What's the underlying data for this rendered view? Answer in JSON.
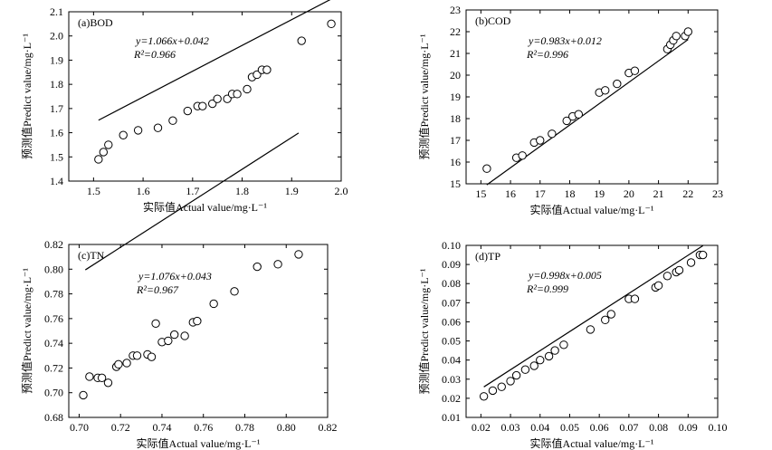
{
  "chart_data": [
    {
      "type": "scatter",
      "title": "(a)BOD",
      "xlabel": "实际值Actual value/mg·L⁻¹",
      "ylabel": "预测值Predict value/mg·L⁻¹",
      "xlim": [
        1.45,
        2.0
      ],
      "ylim": [
        1.4,
        2.1
      ],
      "xticks": [
        "1.5",
        "1.6",
        "1.7",
        "1.8",
        "1.9",
        "2.0"
      ],
      "yticks": [
        "1.4",
        "1.5",
        "1.6",
        "1.7",
        "1.8",
        "1.9",
        "2.0",
        "2.1"
      ],
      "equation": "y=1.066x+0.042",
      "r2": "R²=0.966",
      "fit": {
        "slope": 1.066,
        "intercept": 0.042,
        "xrange": [
          1.51,
          1.98
        ]
      },
      "x": [
        1.51,
        1.52,
        1.53,
        1.56,
        1.59,
        1.63,
        1.66,
        1.69,
        1.71,
        1.72,
        1.74,
        1.75,
        1.77,
        1.78,
        1.79,
        1.81,
        1.82,
        1.83,
        1.84,
        1.85,
        1.92,
        1.98
      ],
      "y": [
        1.49,
        1.52,
        1.55,
        1.59,
        1.61,
        1.62,
        1.65,
        1.69,
        1.71,
        1.71,
        1.72,
        1.74,
        1.74,
        1.76,
        1.76,
        1.78,
        1.83,
        1.84,
        1.86,
        1.86,
        1.98,
        2.05
      ]
    },
    {
      "type": "scatter",
      "title": "(b)COD",
      "xlabel": "实际值Actual value/mg·L⁻¹",
      "ylabel": "预测值Predict value/mg·L⁻¹",
      "xlim": [
        14.5,
        23
      ],
      "ylim": [
        15,
        23
      ],
      "xticks": [
        "15",
        "16",
        "17",
        "18",
        "19",
        "20",
        "21",
        "22",
        "23"
      ],
      "yticks": [
        "15",
        "16",
        "17",
        "18",
        "19",
        "20",
        "21",
        "22",
        "23"
      ],
      "equation": "y=0.983x+0.012",
      "r2": "R²=0.996",
      "fit": {
        "slope": 0.983,
        "intercept": 0.012,
        "xrange": [
          15.2,
          22.0
        ]
      },
      "x": [
        15.2,
        16.2,
        16.4,
        16.8,
        17.0,
        17.4,
        17.9,
        18.1,
        18.3,
        19.0,
        19.2,
        19.6,
        20.0,
        20.2,
        21.3,
        21.4,
        21.5,
        21.6,
        21.9,
        22.0
      ],
      "y": [
        15.7,
        16.2,
        16.3,
        16.9,
        17.0,
        17.3,
        17.9,
        18.1,
        18.2,
        19.2,
        19.3,
        19.6,
        20.1,
        20.2,
        21.2,
        21.4,
        21.6,
        21.8,
        21.8,
        22.0
      ]
    },
    {
      "type": "scatter",
      "title": "(c)TN",
      "xlabel": "实际值Actual value/mg·L⁻¹",
      "ylabel": "预测值Predict value/mg·L⁻¹",
      "xlim": [
        0.695,
        0.82
      ],
      "ylim": [
        0.68,
        0.82
      ],
      "xticks": [
        "0.70",
        "0.72",
        "0.74",
        "0.76",
        "0.78",
        "0.80",
        "0.82"
      ],
      "yticks": [
        "0.68",
        "0.70",
        "0.72",
        "0.74",
        "0.76",
        "0.78",
        "0.80",
        "0.82"
      ],
      "equation": "y=1.076x+0.043",
      "r2": "R²=0.967",
      "fit": {
        "slope": 1.076,
        "intercept": 0.043,
        "xrange": [
          0.703,
          0.806
        ]
      },
      "x": [
        0.702,
        0.705,
        0.709,
        0.711,
        0.714,
        0.718,
        0.719,
        0.723,
        0.726,
        0.728,
        0.733,
        0.735,
        0.737,
        0.74,
        0.743,
        0.746,
        0.751,
        0.755,
        0.757,
        0.765,
        0.775,
        0.786,
        0.796,
        0.806
      ],
      "y": [
        0.698,
        0.713,
        0.712,
        0.712,
        0.708,
        0.721,
        0.723,
        0.724,
        0.73,
        0.73,
        0.731,
        0.729,
        0.756,
        0.741,
        0.742,
        0.747,
        0.746,
        0.757,
        0.758,
        0.772,
        0.782,
        0.802,
        0.804,
        0.812
      ]
    },
    {
      "type": "scatter",
      "title": "(d)TP",
      "xlabel": "实际值Actual value/mg·L⁻¹",
      "ylabel": "预测值Predict value/mg·L⁻¹",
      "xlim": [
        0.015,
        0.1
      ],
      "ylim": [
        0.01,
        0.1
      ],
      "xticks": [
        "0.02",
        "0.03",
        "0.04",
        "0.05",
        "0.06",
        "0.07",
        "0.08",
        "0.09",
        "0.10"
      ],
      "yticks": [
        "0.01",
        "0.02",
        "0.03",
        "0.04",
        "0.05",
        "0.06",
        "0.07",
        "0.08",
        "0.09",
        "0.10"
      ],
      "equation": "y=0.998x+0.005",
      "r2": "R²=0.999",
      "fit": {
        "slope": 0.998,
        "intercept": 0.005,
        "xrange": [
          0.021,
          0.095
        ]
      },
      "x": [
        0.021,
        0.024,
        0.027,
        0.03,
        0.032,
        0.035,
        0.038,
        0.04,
        0.043,
        0.045,
        0.048,
        0.057,
        0.062,
        0.064,
        0.07,
        0.072,
        0.079,
        0.08,
        0.083,
        0.086,
        0.087,
        0.091,
        0.094,
        0.095
      ],
      "y": [
        0.021,
        0.024,
        0.026,
        0.029,
        0.032,
        0.035,
        0.037,
        0.04,
        0.042,
        0.045,
        0.048,
        0.056,
        0.061,
        0.064,
        0.072,
        0.072,
        0.078,
        0.079,
        0.084,
        0.086,
        0.087,
        0.091,
        0.095,
        0.095
      ]
    }
  ]
}
